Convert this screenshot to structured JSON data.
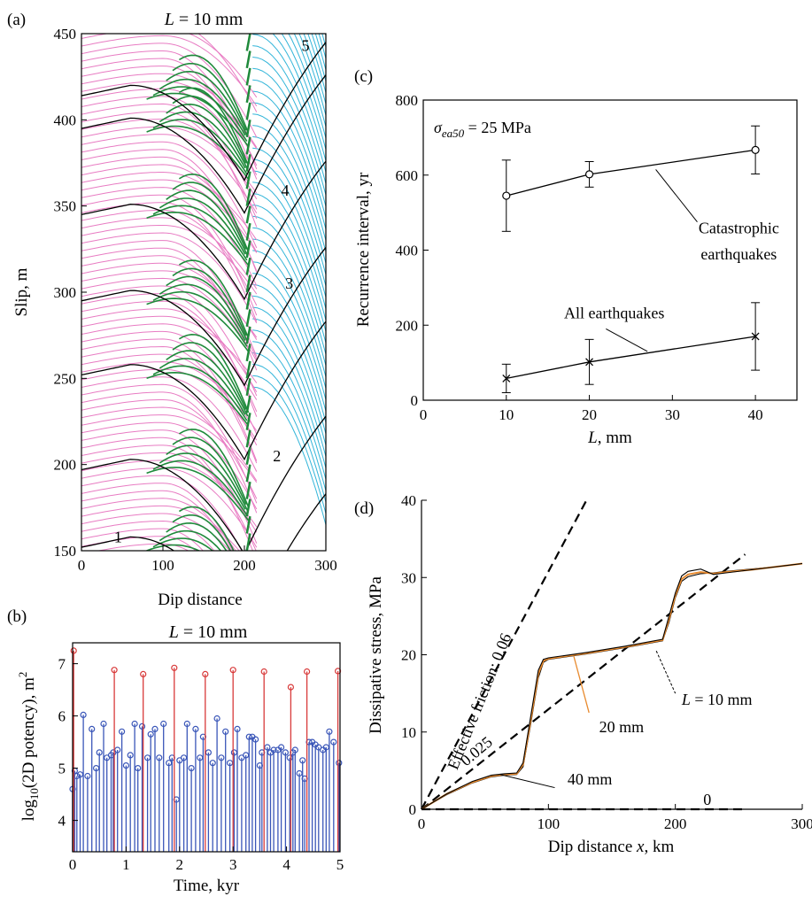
{
  "chart_data": [
    {
      "panel": "(a)",
      "type": "line",
      "title": "L = 10 mm",
      "title_prefix": "L",
      "title_suffix": " = 10 mm",
      "xlabel": "Dip distance",
      "ylabel": "Slip, m",
      "xlim": [
        0,
        300
      ],
      "ylim": [
        150,
        450
      ],
      "xticks": [
        0,
        100,
        200,
        300
      ],
      "yticks": [
        150,
        200,
        250,
        300,
        350,
        400,
        450
      ],
      "annotations": [
        "1",
        "2",
        "3",
        "4",
        "5"
      ],
      "colors": {
        "interseismic_shallow": "#e87cc3",
        "interseismic_deep": "#33b5d9",
        "coseismic": "#1f8a3b",
        "catastrophic": "#000000"
      },
      "cycle_slips": [
        150,
        195,
        250,
        293,
        343,
        393,
        412
      ]
    },
    {
      "panel": "(b)",
      "type": "scatter",
      "title": "L = 10 mm",
      "title_prefix": "L",
      "title_suffix": " = 10 mm",
      "xlabel": "Time, kyr",
      "ylabel": "log10(2D potency), m2",
      "ylabel_parts": {
        "pre": "log",
        "sub": "10",
        "mid": "(2D potency), m",
        "sup": "2"
      },
      "xlim": [
        0,
        5
      ],
      "ylim": [
        3.4,
        7.4
      ],
      "xticks": [
        0,
        1,
        2,
        3,
        4,
        5
      ],
      "yticks": [
        4,
        5,
        6,
        7
      ],
      "colors": {
        "large": "#d83a3a",
        "small": "#3a56b8"
      },
      "series": [
        {
          "name": "large",
          "points": [
            [
              0.02,
              7.25
            ],
            [
              0.78,
              6.88
            ],
            [
              1.32,
              6.8
            ],
            [
              1.9,
              6.92
            ],
            [
              2.48,
              6.8
            ],
            [
              3.0,
              6.88
            ],
            [
              3.58,
              6.85
            ],
            [
              4.08,
              6.55
            ],
            [
              4.38,
              6.85
            ],
            [
              4.96,
              6.86
            ]
          ]
        },
        {
          "name": "small",
          "points": [
            [
              0.0,
              4.6
            ],
            [
              0.04,
              4.95
            ],
            [
              0.08,
              4.85
            ],
            [
              0.14,
              4.88
            ],
            [
              0.2,
              6.02
            ],
            [
              0.28,
              4.85
            ],
            [
              0.36,
              5.75
            ],
            [
              0.44,
              5.0
            ],
            [
              0.5,
              5.3
            ],
            [
              0.58,
              5.85
            ],
            [
              0.64,
              5.2
            ],
            [
              0.72,
              5.25
            ],
            [
              0.76,
              5.3
            ],
            [
              0.84,
              5.35
            ],
            [
              0.92,
              5.7
            ],
            [
              1.0,
              5.05
            ],
            [
              1.08,
              5.25
            ],
            [
              1.16,
              5.85
            ],
            [
              1.22,
              5.0
            ],
            [
              1.3,
              5.8
            ],
            [
              1.4,
              5.2
            ],
            [
              1.46,
              5.65
            ],
            [
              1.54,
              5.75
            ],
            [
              1.62,
              5.2
            ],
            [
              1.7,
              5.85
            ],
            [
              1.8,
              5.1
            ],
            [
              1.86,
              5.2
            ],
            [
              1.94,
              4.4
            ],
            [
              2.0,
              5.15
            ],
            [
              2.08,
              5.2
            ],
            [
              2.14,
              5.85
            ],
            [
              2.22,
              5.0
            ],
            [
              2.3,
              5.75
            ],
            [
              2.38,
              5.2
            ],
            [
              2.44,
              5.6
            ],
            [
              2.54,
              5.3
            ],
            [
              2.62,
              5.1
            ],
            [
              2.7,
              5.95
            ],
            [
              2.78,
              5.2
            ],
            [
              2.86,
              5.7
            ],
            [
              2.94,
              5.1
            ],
            [
              3.02,
              5.3
            ],
            [
              3.08,
              5.75
            ],
            [
              3.16,
              5.2
            ],
            [
              3.24,
              5.25
            ],
            [
              3.3,
              5.6
            ],
            [
              3.36,
              5.6
            ],
            [
              3.42,
              5.55
            ],
            [
              3.5,
              5.05
            ],
            [
              3.54,
              5.3
            ],
            [
              3.64,
              5.4
            ],
            [
              3.7,
              5.3
            ],
            [
              3.76,
              5.35
            ],
            [
              3.84,
              5.35
            ],
            [
              3.9,
              5.4
            ],
            [
              3.98,
              5.3
            ],
            [
              4.06,
              5.2
            ],
            [
              4.12,
              5.3
            ],
            [
              4.16,
              5.35
            ],
            [
              4.24,
              4.9
            ],
            [
              4.3,
              5.15
            ],
            [
              4.34,
              4.8
            ],
            [
              4.42,
              5.5
            ],
            [
              4.48,
              5.5
            ],
            [
              4.54,
              5.45
            ],
            [
              4.6,
              5.4
            ],
            [
              4.68,
              5.35
            ],
            [
              4.74,
              5.4
            ],
            [
              4.8,
              5.7
            ],
            [
              4.88,
              5.5
            ],
            [
              4.98,
              5.1
            ]
          ]
        }
      ]
    },
    {
      "panel": "(c)",
      "type": "line",
      "xlabel": "L, mm",
      "xlabel_suffix": ", mm",
      "ylabel": "Recurrence interval, yr",
      "xlim": [
        0,
        45
      ],
      "ylim": [
        0,
        800
      ],
      "xticks": [
        0,
        10,
        20,
        30,
        40
      ],
      "yticks": [
        0,
        200,
        400,
        600,
        800
      ],
      "sigma_label": {
        "sub": "ea50",
        "value": " = 25 MPa"
      },
      "series": [
        {
          "name": "Catastrophic earthquakes",
          "label_lines": [
            "Catastrophic",
            "earthquakes"
          ],
          "marker": "circle",
          "x": [
            10,
            20,
            40
          ],
          "values": [
            545,
            602,
            667
          ],
          "err_low": [
            450,
            568,
            603
          ],
          "err_high": [
            640,
            636,
            731
          ]
        },
        {
          "name": "All earthquakes",
          "label_lines": [
            "All earthquakes"
          ],
          "marker": "x",
          "x": [
            10,
            20,
            40
          ],
          "values": [
            58,
            102,
            170
          ],
          "err_low": [
            20,
            42,
            80
          ],
          "err_high": [
            96,
            162,
            260
          ]
        }
      ]
    },
    {
      "panel": "(d)",
      "type": "line",
      "xlabel": "Dip distance x, km",
      "xlabel_parts": [
        "Dip distance ",
        "x",
        ", km"
      ],
      "ylabel": "Dissipative stress, MPa",
      "xlim": [
        0,
        300
      ],
      "ylim": [
        0,
        40
      ],
      "xticks": [
        0,
        100,
        200,
        300
      ],
      "yticks": [
        0,
        10,
        20,
        30,
        40
      ],
      "friction_lines": [
        {
          "label": "Effective friction: 0.06",
          "x": [
            0,
            130
          ],
          "y": [
            0,
            40
          ]
        },
        {
          "label": "0.025",
          "x": [
            0,
            255
          ],
          "y": [
            0,
            33
          ]
        },
        {
          "label": "0",
          "x": [
            0,
            255
          ],
          "y": [
            0,
            0
          ]
        }
      ],
      "series": [
        {
          "name": "L = 10 mm",
          "label_prefix": "L",
          "label_suffix": " = 10 mm",
          "color": "#000000",
          "x": [
            0,
            20,
            40,
            55,
            65,
            75,
            80,
            86,
            92,
            96,
            100,
            130,
            160,
            190,
            195,
            200,
            205,
            210,
            220,
            230,
            240,
            260,
            280,
            300
          ],
          "values": [
            0,
            2,
            3.6,
            4.4,
            4.6,
            4.7,
            6,
            12,
            18,
            19.4,
            19.6,
            20.3,
            21.1,
            22,
            25,
            28,
            30.2,
            30.8,
            31.1,
            30.4,
            30.6,
            31,
            31.4,
            31.8
          ]
        },
        {
          "name": "20 mm",
          "color": "#e88a2e",
          "x": [
            0,
            20,
            40,
            55,
            65,
            75,
            80,
            86,
            92,
            96,
            100,
            130,
            160,
            190,
            195,
            200,
            205,
            210,
            220,
            230,
            240,
            260,
            280,
            300
          ],
          "values": [
            0,
            2,
            3.5,
            4.3,
            4.5,
            4.6,
            5.8,
            11.5,
            17.5,
            19.2,
            19.5,
            20.2,
            21,
            21.9,
            24.6,
            27.7,
            29.8,
            30.4,
            30.7,
            30.5,
            30.7,
            31,
            31.4,
            31.8
          ]
        },
        {
          "name": "40 mm",
          "color": "#000000",
          "x": [
            0,
            20,
            40,
            55,
            65,
            75,
            80,
            86,
            92,
            96,
            100,
            130,
            160,
            190,
            195,
            200,
            205,
            210,
            220,
            230,
            240,
            260,
            280,
            300
          ],
          "values": [
            0,
            1.9,
            3.4,
            4.2,
            4.4,
            4.5,
            5.5,
            11,
            17,
            19,
            19.4,
            20.1,
            20.9,
            21.8,
            24.2,
            27.4,
            29.5,
            30.1,
            30.5,
            30.6,
            30.8,
            31.1,
            31.4,
            31.8
          ]
        }
      ]
    }
  ]
}
